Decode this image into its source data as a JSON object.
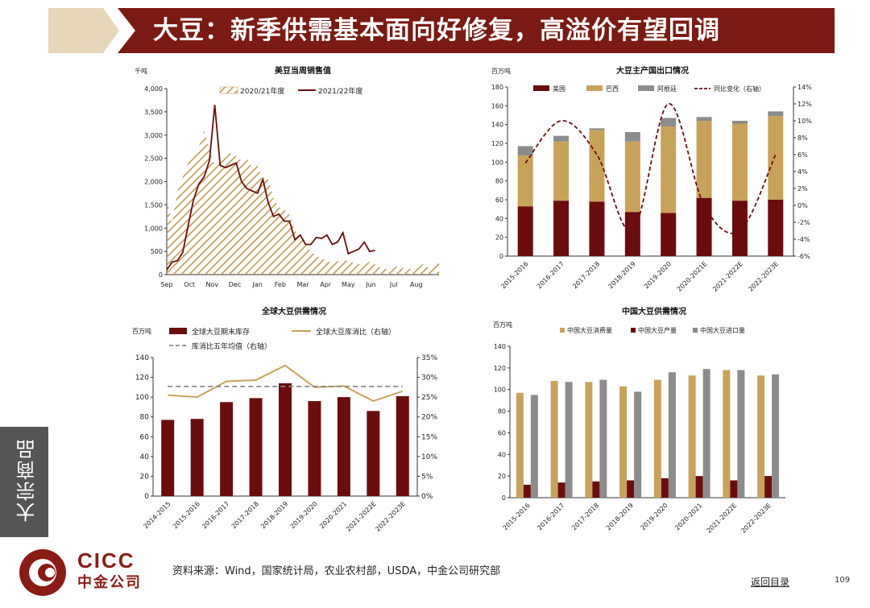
{
  "header": {
    "title": "大豆：新季供需基本面向好修复，高溢价有望回调",
    "bar_color": "#7b1a12",
    "accent_color": "#e6d7b9"
  },
  "side_tab": {
    "label": "大宗商品"
  },
  "footer": {
    "logo_en": "CICC",
    "logo_cn": "中金公司",
    "source": "资料来源：Wind，国家统计局，农业农村部，USDA，中金公司研究部",
    "back_link": "返回目录",
    "page_number": "109"
  },
  "colors": {
    "maroon": "#6b0d0d",
    "gold": "#c9a25a",
    "gray": "#8c8c8c",
    "hatch": "#c39a4e"
  },
  "chart_data": [
    {
      "type": "area",
      "title": "美豆当周销售值",
      "ylabel": "千吨",
      "ylim": [
        0,
        4000
      ],
      "y_ticks": [
        "4,000",
        "3,500",
        "3,000",
        "2,500",
        "2,000",
        "1,500",
        "1,000",
        "500",
        "0"
      ],
      "x_ticks": [
        "Sep",
        "Oct",
        "Nov",
        "Dec",
        "Jan",
        "Feb",
        "Mar",
        "Apr",
        "May",
        "Jun",
        "Jul",
        "Aug"
      ],
      "series": [
        {
          "name": "2020/21年度",
          "style": "hatched-area",
          "values": [
            1650,
            1100,
            1800,
            2100,
            2400,
            2600,
            2750,
            3100,
            2700,
            2350,
            2500,
            2650,
            2600,
            2550,
            2450,
            2500,
            2300,
            2350,
            2000,
            2050,
            1650,
            1450,
            1400,
            1300,
            950,
            800,
            650,
            500,
            400,
            350,
            300,
            250,
            280,
            320,
            300,
            250,
            230,
            200,
            280,
            220,
            150,
            120,
            100,
            180,
            150,
            130,
            120,
            140,
            230,
            150,
            250,
            300
          ]
        },
        {
          "name": "2021/22年度",
          "style": "line",
          "values": [
            100,
            270,
            300,
            480,
            1050,
            1600,
            1950,
            2100,
            2450,
            3650,
            2350,
            2300,
            2350,
            2400,
            2000,
            1850,
            1800,
            1750,
            2050,
            1550,
            1250,
            1300,
            1150,
            1150,
            750,
            850,
            650,
            650,
            800,
            780,
            850,
            650,
            700,
            900,
            450,
            500,
            550,
            700,
            500,
            520
          ]
        }
      ]
    },
    {
      "type": "bar",
      "title": "大豆主产国出口情况",
      "ylabel": "百万吨",
      "ylim": [
        0,
        180
      ],
      "y2lim": [
        -6,
        14
      ],
      "y_ticks": [
        "180",
        "160",
        "140",
        "120",
        "100",
        "80",
        "60",
        "40",
        "20",
        "0"
      ],
      "y2_ticks": [
        "14%",
        "12%",
        "10%",
        "8%",
        "6%",
        "4%",
        "2%",
        "0%",
        "-2%",
        "-4%",
        "-6%"
      ],
      "categories": [
        "2015-2016",
        "2016-2017",
        "2017-2018",
        "2018-2019",
        "2019-2020",
        "2020-2021E",
        "2021-2022E",
        "2022-2023E"
      ],
      "stacked": true,
      "series": [
        {
          "name": "美国",
          "values": [
            53,
            59,
            58,
            47,
            46,
            62,
            59,
            60
          ]
        },
        {
          "name": "巴西",
          "values": [
            54,
            63,
            76,
            75,
            92,
            82,
            82,
            89
          ]
        },
        {
          "name": "阿根廷",
          "values": [
            10,
            6,
            2,
            10,
            9,
            4,
            3,
            5
          ]
        },
        {
          "name": "同比变化（右轴）",
          "axis": "right",
          "style": "dashed-line",
          "values": [
            5,
            10,
            6,
            -3,
            12,
            0,
            -3,
            6
          ]
        }
      ]
    },
    {
      "type": "bar",
      "title": "全球大豆供需情况",
      "ylabel": "百万吨",
      "ylim": [
        0,
        140
      ],
      "y2lim": [
        0,
        35
      ],
      "y_ticks": [
        "140",
        "120",
        "100",
        "80",
        "60",
        "40",
        "20",
        "0"
      ],
      "y2_ticks": [
        "35%",
        "30%",
        "25%",
        "20%",
        "15%",
        "10%",
        "5%",
        "0%"
      ],
      "categories": [
        "2014-2015",
        "2015-2016",
        "2016-2017",
        "2017-2018",
        "2018-2019",
        "2019-2020",
        "2020-2021",
        "2021-2022E",
        "2022-2023E"
      ],
      "series": [
        {
          "name": "全球大豆期末库存",
          "values": [
            77,
            78,
            95,
            99,
            114,
            96,
            100,
            86,
            101
          ]
        },
        {
          "name": "全球大豆库消比（右轴）",
          "axis": "right",
          "style": "line",
          "values": [
            25.5,
            25,
            29,
            29.3,
            33,
            27.5,
            27.8,
            24,
            26.5
          ]
        },
        {
          "name": "库消比五年均值（右轴）",
          "axis": "right",
          "style": "dashed-line",
          "values": [
            27.7,
            27.7,
            27.7,
            27.7,
            27.7,
            27.7,
            27.7,
            27.7,
            27.7
          ]
        }
      ]
    },
    {
      "type": "bar",
      "title": "中国大豆供需情况",
      "ylabel": "百万吨",
      "ylim": [
        0,
        140
      ],
      "y_ticks": [
        "140",
        "120",
        "100",
        "80",
        "60",
        "40",
        "20",
        "0"
      ],
      "categories": [
        "2015-2016",
        "2016-2017",
        "2017-2018",
        "2018-2019",
        "2019-2020",
        "2020-2021",
        "2021-2022E",
        "2022-2023E"
      ],
      "series": [
        {
          "name": "中国大豆消费量",
          "values": [
            97,
            108,
            107,
            103,
            109,
            113,
            118,
            113
          ]
        },
        {
          "name": "中国大豆产量",
          "values": [
            12,
            14,
            15,
            16,
            18,
            20,
            16,
            20
          ]
        },
        {
          "name": "中国大豆进口量",
          "values": [
            95,
            107,
            109,
            98,
            116,
            119,
            118,
            114
          ]
        }
      ]
    }
  ]
}
